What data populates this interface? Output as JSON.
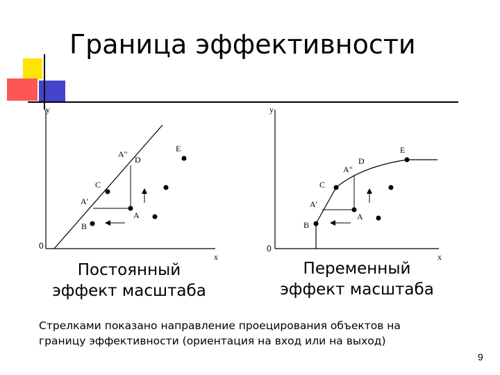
{
  "slide": {
    "title": "Граница эффективности",
    "page_number": "9"
  },
  "left_plot": {
    "y_axis_label": "y",
    "x_axis_label": "x",
    "origin_label": "0",
    "points": {
      "A": "A",
      "A1": "A'",
      "A2": "A\"",
      "B": "B",
      "C": "C",
      "D": "D",
      "E": "E"
    },
    "caption_line1": "Постоянный",
    "caption_line2": "эффект масштаба"
  },
  "right_plot": {
    "y_axis_label": "y",
    "x_axis_label": "x",
    "origin_label": "0",
    "points": {
      "A": "A",
      "A1": "A'",
      "A2": "A\"",
      "B": "B",
      "C": "C",
      "D": "D",
      "E": "E"
    },
    "caption_line1": "Переменный",
    "caption_line2": "эффект масштаба"
  },
  "note": {
    "line1": "Стрелками показано направление проецирования объектов на",
    "line2": "границу эффективности (ориентация на вход или на выход)"
  }
}
